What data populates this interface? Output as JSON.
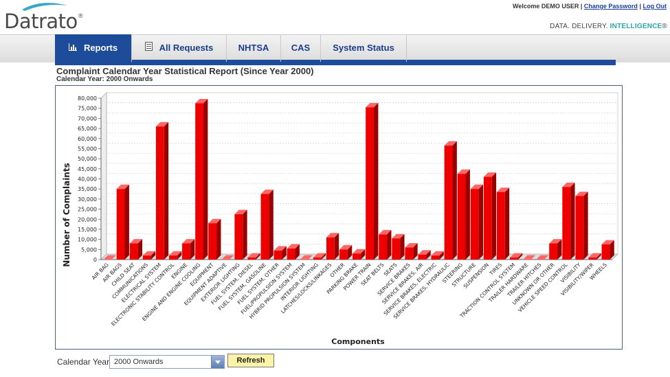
{
  "brand": {
    "logo_text": "Datrato",
    "logo_reg": "®"
  },
  "user_bar": {
    "welcome": "Welcome DEMO USER",
    "separator": "|",
    "change_password": "Change Password",
    "logout": "Log Out"
  },
  "tagline": {
    "part1": "DATA. DELIVERY.",
    "part2": "INTELLIGENCE",
    "reg": "®"
  },
  "nav": {
    "tabs": [
      {
        "label": "Reports",
        "icon": "bar-chart-icon",
        "active": true
      },
      {
        "label": "All Requests",
        "icon": "document-icon",
        "active": false
      },
      {
        "label": "NHTSA",
        "active": false
      },
      {
        "label": "CAS",
        "active": false
      },
      {
        "label": "System Status",
        "active": false
      }
    ]
  },
  "report": {
    "title": "Complaint Calendar Year Statistical Report (Since Year 2000)",
    "subtitle": "Calendar Year: 2000 Onwards"
  },
  "filter": {
    "label": "Calendar Year",
    "selected": "2000 Onwards",
    "refresh_label": "Refresh"
  },
  "colors": {
    "bar": "#ee0000",
    "bar_side": "#990000",
    "bar_top": "#ff6666",
    "nav_active": "#1c4c9a"
  },
  "chart_data": {
    "type": "bar",
    "title": "",
    "xlabel": "Components",
    "ylabel": "Number of Complaints",
    "ylim": [
      0,
      80000
    ],
    "yticks": [
      0,
      5000,
      10000,
      15000,
      20000,
      25000,
      30000,
      35000,
      40000,
      45000,
      50000,
      55000,
      60000,
      65000,
      70000,
      75000,
      80000
    ],
    "ytick_labels": [
      "0",
      "5,000",
      "10,000",
      "15,000",
      "20,000",
      "25,000",
      "30,000",
      "35,000",
      "40,000",
      "45,000",
      "50,000",
      "55,000",
      "60,000",
      "65,000",
      "70,000",
      "75,000",
      "80,000"
    ],
    "grid": true,
    "legend": "none",
    "categories": [
      "AIR BAG",
      "AIR BAGS",
      "CHILD SEAT",
      "COMMUNICATIONS",
      "ELECTRICAL SYSTEM",
      "ELECTRONIC STABILITY CONTROL",
      "ENGINE",
      "ENGINE AND ENGINE COOLING",
      "EQUIPMENT",
      "EQUIPMENT ADAPTIVE",
      "EXTERIOR LIGHTING",
      "FUEL SYSTEM, DIESEL",
      "FUEL SYSTEM, GASOLINE",
      "FUEL SYSTEM, OTHER",
      "FUEL/PROPULSION SYSTEM",
      "HYBRID PROPULSION SYSTEM",
      "INTERIOR LIGHTING",
      "LATCHES/LOCKS/LINKAGES",
      "OTHER",
      "PARKING BRAKE",
      "POWER TRAIN",
      "SEAT BELTS",
      "SEATS",
      "SERVICE BRAKES",
      "SERVICE BRAKES, AIR",
      "SERVICE BRAKES, ELECTRIC",
      "SERVICE BRAKES, HYDRAULIC",
      "STEERING",
      "STRUCTURE",
      "SUSPENSION",
      "TIRES",
      "TRACTION CONTROL SYSTEM",
      "TRAILER HARDWARE",
      "TRAILER HITCHES",
      "UNKNOWN OR OTHER",
      "VEHICLE SPEED CONTROL",
      "VISIBILITY",
      "VISIBILITY/WIPER",
      "WHEELS"
    ],
    "values": [
      0,
      35000,
      8000,
      2000,
      66000,
      2000,
      8000,
      77500,
      18000,
      0,
      22500,
      1000,
      32500,
      4500,
      5500,
      0,
      1000,
      11000,
      5000,
      3000,
      75500,
      12500,
      10500,
      6000,
      2500,
      2000,
      56500,
      42500,
      35000,
      41000,
      33500,
      1000,
      0,
      0,
      8000,
      36000,
      31500,
      1000,
      7500
    ]
  }
}
